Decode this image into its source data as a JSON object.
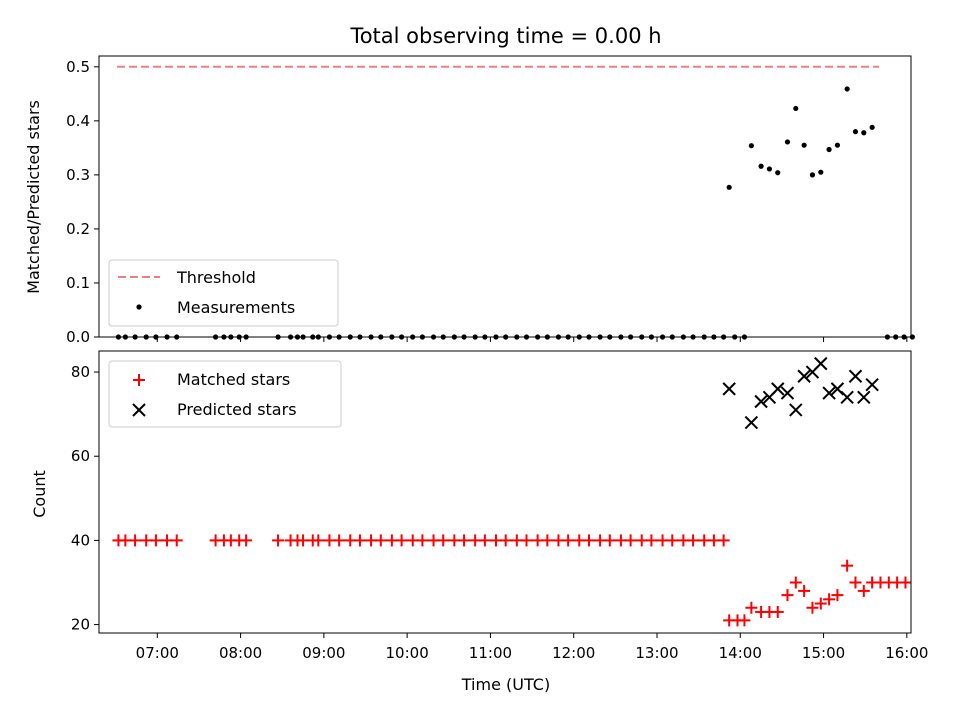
{
  "chart_data": [
    {
      "type": "scatter",
      "title": "Total observing time = 0.00 h",
      "ylabel": "Matched/Predicted stars",
      "ylim": [
        0,
        0.52
      ],
      "yticks": [
        "0.0",
        "0.1",
        "0.2",
        "0.3",
        "0.4",
        "0.5"
      ],
      "xlim": [
        "06:18",
        "16:03"
      ],
      "legend_position": "lower-left",
      "threshold": {
        "name": "Threshold",
        "value": 0.5,
        "x_start": "06:31",
        "x_end": "15:40",
        "color": "#f08080",
        "style": "dashed"
      },
      "series": [
        {
          "name": "Measurements",
          "color": "#000000",
          "marker": "dot",
          "points": [
            [
              "06:32",
              0
            ],
            [
              "06:37",
              0
            ],
            [
              "06:44",
              0
            ],
            [
              "06:52",
              0
            ],
            [
              "06:59",
              0
            ],
            [
              "07:07",
              0
            ],
            [
              "07:14",
              0
            ],
            [
              "07:42",
              0
            ],
            [
              "07:48",
              0
            ],
            [
              "07:53",
              0
            ],
            [
              "07:59",
              0
            ],
            [
              "08:04",
              0
            ],
            [
              "08:27",
              0
            ],
            [
              "08:36",
              0
            ],
            [
              "08:41",
              0
            ],
            [
              "08:45",
              0
            ],
            [
              "08:52",
              0
            ],
            [
              "08:56",
              0
            ],
            [
              "09:04",
              0
            ],
            [
              "09:11",
              0
            ],
            [
              "09:19",
              0
            ],
            [
              "09:26",
              0
            ],
            [
              "09:34",
              0
            ],
            [
              "09:41",
              0
            ],
            [
              "09:49",
              0
            ],
            [
              "09:56",
              0
            ],
            [
              "10:04",
              0
            ],
            [
              "10:11",
              0
            ],
            [
              "10:19",
              0
            ],
            [
              "10:26",
              0
            ],
            [
              "10:34",
              0
            ],
            [
              "10:41",
              0
            ],
            [
              "10:49",
              0
            ],
            [
              "10:56",
              0
            ],
            [
              "11:04",
              0
            ],
            [
              "11:11",
              0
            ],
            [
              "11:19",
              0
            ],
            [
              "11:26",
              0
            ],
            [
              "11:34",
              0
            ],
            [
              "11:41",
              0
            ],
            [
              "11:49",
              0
            ],
            [
              "11:56",
              0
            ],
            [
              "12:04",
              0
            ],
            [
              "12:11",
              0
            ],
            [
              "12:19",
              0
            ],
            [
              "12:26",
              0
            ],
            [
              "12:34",
              0
            ],
            [
              "12:41",
              0
            ],
            [
              "12:49",
              0
            ],
            [
              "12:56",
              0
            ],
            [
              "13:04",
              0
            ],
            [
              "13:11",
              0
            ],
            [
              "13:19",
              0
            ],
            [
              "13:26",
              0
            ],
            [
              "13:34",
              0
            ],
            [
              "13:41",
              0
            ],
            [
              "13:48",
              0
            ],
            [
              "13:56",
              0
            ],
            [
              "14:03",
              0
            ],
            [
              "13:52",
              0.277
            ],
            [
              "14:08",
              0.354
            ],
            [
              "14:15",
              0.316
            ],
            [
              "14:21",
              0.311
            ],
            [
              "14:27",
              0.304
            ],
            [
              "14:34",
              0.361
            ],
            [
              "14:40",
              0.423
            ],
            [
              "14:46",
              0.355
            ],
            [
              "14:52",
              0.3
            ],
            [
              "14:58",
              0.305
            ],
            [
              "15:04",
              0.347
            ],
            [
              "15:10",
              0.355
            ],
            [
              "15:17",
              0.459
            ],
            [
              "15:23",
              0.38
            ],
            [
              "15:29",
              0.378
            ],
            [
              "15:35",
              0.388
            ],
            [
              "15:46",
              0
            ],
            [
              "15:52",
              0
            ],
            [
              "15:58",
              0
            ],
            [
              "16:04",
              0
            ]
          ]
        }
      ]
    },
    {
      "type": "scatter",
      "xlabel": "Time (UTC)",
      "ylabel": "Count",
      "ylim": [
        18,
        85
      ],
      "yticks": [
        "20",
        "40",
        "60",
        "80"
      ],
      "xlim": [
        "06:18",
        "16:03"
      ],
      "xticks": [
        "07:00",
        "08:00",
        "09:00",
        "10:00",
        "11:00",
        "12:00",
        "13:00",
        "14:00",
        "15:00",
        "16:00"
      ],
      "legend_position": "upper-left",
      "series": [
        {
          "name": "Matched stars",
          "color": "#ff0000",
          "marker": "plus",
          "points": [
            [
              "06:32",
              40
            ],
            [
              "06:37",
              40
            ],
            [
              "06:44",
              40
            ],
            [
              "06:52",
              40
            ],
            [
              "06:59",
              40
            ],
            [
              "07:07",
              40
            ],
            [
              "07:14",
              40
            ],
            [
              "07:42",
              40
            ],
            [
              "07:48",
              40
            ],
            [
              "07:53",
              40
            ],
            [
              "07:59",
              40
            ],
            [
              "08:04",
              40
            ],
            [
              "08:27",
              40
            ],
            [
              "08:36",
              40
            ],
            [
              "08:41",
              40
            ],
            [
              "08:45",
              40
            ],
            [
              "08:52",
              40
            ],
            [
              "08:56",
              40
            ],
            [
              "09:04",
              40
            ],
            [
              "09:11",
              40
            ],
            [
              "09:19",
              40
            ],
            [
              "09:26",
              40
            ],
            [
              "09:34",
              40
            ],
            [
              "09:41",
              40
            ],
            [
              "09:49",
              40
            ],
            [
              "09:56",
              40
            ],
            [
              "10:04",
              40
            ],
            [
              "10:11",
              40
            ],
            [
              "10:19",
              40
            ],
            [
              "10:26",
              40
            ],
            [
              "10:34",
              40
            ],
            [
              "10:41",
              40
            ],
            [
              "10:49",
              40
            ],
            [
              "10:56",
              40
            ],
            [
              "11:04",
              40
            ],
            [
              "11:11",
              40
            ],
            [
              "11:19",
              40
            ],
            [
              "11:26",
              40
            ],
            [
              "11:34",
              40
            ],
            [
              "11:41",
              40
            ],
            [
              "11:49",
              40
            ],
            [
              "11:56",
              40
            ],
            [
              "12:04",
              40
            ],
            [
              "12:11",
              40
            ],
            [
              "12:19",
              40
            ],
            [
              "12:26",
              40
            ],
            [
              "12:34",
              40
            ],
            [
              "12:41",
              40
            ],
            [
              "12:49",
              40
            ],
            [
              "12:56",
              40
            ],
            [
              "13:04",
              40
            ],
            [
              "13:11",
              40
            ],
            [
              "13:19",
              40
            ],
            [
              "13:26",
              40
            ],
            [
              "13:34",
              40
            ],
            [
              "13:41",
              40
            ],
            [
              "13:48",
              40
            ],
            [
              "13:52",
              21
            ],
            [
              "13:58",
              21
            ],
            [
              "14:03",
              21
            ],
            [
              "14:08",
              24
            ],
            [
              "14:15",
              23
            ],
            [
              "14:21",
              23
            ],
            [
              "14:27",
              23
            ],
            [
              "14:34",
              27
            ],
            [
              "14:40",
              30
            ],
            [
              "14:46",
              28
            ],
            [
              "14:52",
              24
            ],
            [
              "14:58",
              25
            ],
            [
              "15:04",
              26
            ],
            [
              "15:10",
              27
            ],
            [
              "15:17",
              34
            ],
            [
              "15:23",
              30
            ],
            [
              "15:29",
              28
            ],
            [
              "15:35",
              30
            ],
            [
              "15:41",
              30
            ],
            [
              "15:47",
              30
            ],
            [
              "15:53",
              30
            ],
            [
              "15:59",
              30
            ]
          ]
        },
        {
          "name": "Predicted stars",
          "color": "#000000",
          "marker": "x",
          "points": [
            [
              "13:52",
              76
            ],
            [
              "14:08",
              68
            ],
            [
              "14:15",
              73
            ],
            [
              "14:21",
              74
            ],
            [
              "14:27",
              76
            ],
            [
              "14:34",
              75
            ],
            [
              "14:40",
              71
            ],
            [
              "14:46",
              79
            ],
            [
              "14:52",
              80
            ],
            [
              "14:58",
              82
            ],
            [
              "15:04",
              75
            ],
            [
              "15:10",
              76
            ],
            [
              "15:17",
              74
            ],
            [
              "15:23",
              79
            ],
            [
              "15:29",
              74
            ],
            [
              "15:35",
              77
            ]
          ]
        }
      ]
    }
  ]
}
